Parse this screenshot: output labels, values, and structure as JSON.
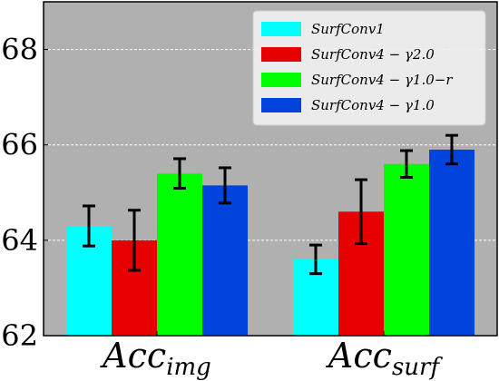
{
  "chart_data": {
    "type": "bar",
    "title": "",
    "xlabel": "",
    "ylabel": "",
    "ylim": [
      62,
      69
    ],
    "yticks": [
      62,
      64,
      66,
      68
    ],
    "grid": true,
    "legend_position": "top-right",
    "background_color": "#b0b0b0",
    "categories": [
      {
        "main": "Acc",
        "sub": "img"
      },
      {
        "main": "Acc",
        "sub": "surf"
      }
    ],
    "series": [
      {
        "name": "SurfConv1",
        "color": "#00ffff",
        "values": [
          64.3,
          63.6
        ],
        "errors": [
          0.42,
          0.3
        ]
      },
      {
        "name": "SurfConv4 − γ2.0",
        "color": "#e60000",
        "values": [
          64.0,
          64.6
        ],
        "errors": [
          0.63,
          0.67
        ]
      },
      {
        "name": "SurfConv4 − γ1.0−r",
        "color": "#00ff00",
        "values": [
          65.4,
          65.6
        ],
        "errors": [
          0.31,
          0.28
        ]
      },
      {
        "name": "SurfConv4 − γ1.0",
        "color": "#0044dd",
        "values": [
          65.15,
          65.9
        ],
        "errors": [
          0.37,
          0.3
        ]
      }
    ]
  }
}
